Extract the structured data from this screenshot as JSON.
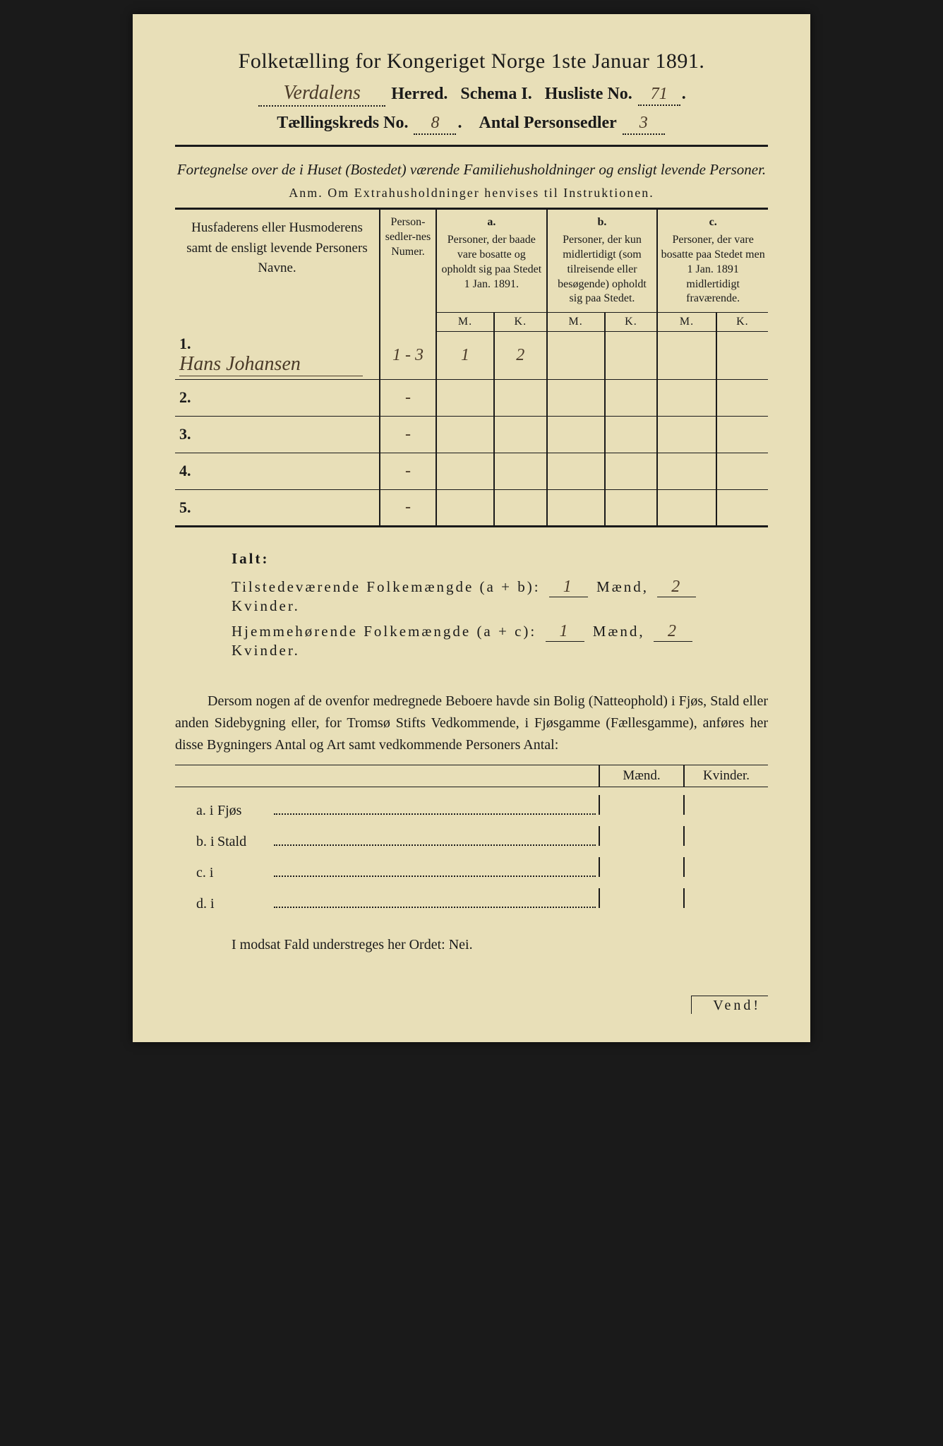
{
  "header": {
    "title": "Folketælling for Kongeriget Norge 1ste Januar 1891.",
    "herred_hw": "Verdalens",
    "herred_label": "Herred.",
    "schema": "Schema I.",
    "husliste_label": "Husliste No.",
    "husliste_no": "71",
    "kreds_label": "Tællingskreds No.",
    "kreds_no": "8",
    "sedler_label": "Antal Personsedler",
    "sedler_no": "3"
  },
  "desc": {
    "line1": "Fortegnelse over de i Huset (Bostedet) værende Familiehusholdninger og ensligt levende Personer.",
    "anm": "Anm. Om Extrahusholdninger henvises til Instruktionen."
  },
  "table": {
    "col1": "Husfaderens eller Husmoderens samt de ensligt levende Personers Navne.",
    "col2": "Person-sedler-nes Numer.",
    "a_label": "a.",
    "a_text": "Personer, der baade vare bosatte og opholdt sig paa Stedet 1 Jan. 1891.",
    "b_label": "b.",
    "b_text": "Personer, der kun midlertidigt (som tilreisende eller besøgende) opholdt sig paa Stedet.",
    "c_label": "c.",
    "c_text": "Personer, der vare bosatte paa Stedet men 1 Jan. 1891 midlertidigt fraværende.",
    "M": "M.",
    "K": "K.",
    "rows": [
      {
        "n": "1.",
        "name": "Hans Johansen",
        "numer": "1 - 3",
        "aM": "1",
        "aK": "2",
        "bM": "",
        "bK": "",
        "cM": "",
        "cK": ""
      },
      {
        "n": "2.",
        "name": "",
        "numer": "-",
        "aM": "",
        "aK": "",
        "bM": "",
        "bK": "",
        "cM": "",
        "cK": ""
      },
      {
        "n": "3.",
        "name": "",
        "numer": "-",
        "aM": "",
        "aK": "",
        "bM": "",
        "bK": "",
        "cM": "",
        "cK": ""
      },
      {
        "n": "4.",
        "name": "",
        "numer": "-",
        "aM": "",
        "aK": "",
        "bM": "",
        "bK": "",
        "cM": "",
        "cK": ""
      },
      {
        "n": "5.",
        "name": "",
        "numer": "-",
        "aM": "",
        "aK": "",
        "bM": "",
        "bK": "",
        "cM": "",
        "cK": ""
      }
    ]
  },
  "ialt": {
    "title": "Ialt:",
    "line1_a": "Tilstedeværende Folkemængde (a + b):",
    "line1_m": "1",
    "line1_k": "2",
    "line2_a": "Hjemmehørende Folkemængde (a + c):",
    "line2_m": "1",
    "line2_k": "2",
    "maend": "Mænd,",
    "kvinder": "Kvinder."
  },
  "para": "Dersom nogen af de ovenfor medregnede Beboere havde sin Bolig (Natteophold) i Fjøs, Stald eller anden Sidebygning eller, for Tromsø Stifts Vedkommende, i Fjøsgamme (Fællesgamme), anføres her disse Bygningers Antal og Art samt vedkommende Personers Antal:",
  "mk": {
    "maend": "Mænd.",
    "kvinder": "Kvinder."
  },
  "sublist": {
    "a": "a.  i",
    "a_word": "Fjøs",
    "b": "b.  i",
    "b_word": "Stald",
    "c": "c.  i",
    "d": "d.  i"
  },
  "nei": "I modsat Fald understreges her Ordet: Nei.",
  "vend": "Vend!"
}
